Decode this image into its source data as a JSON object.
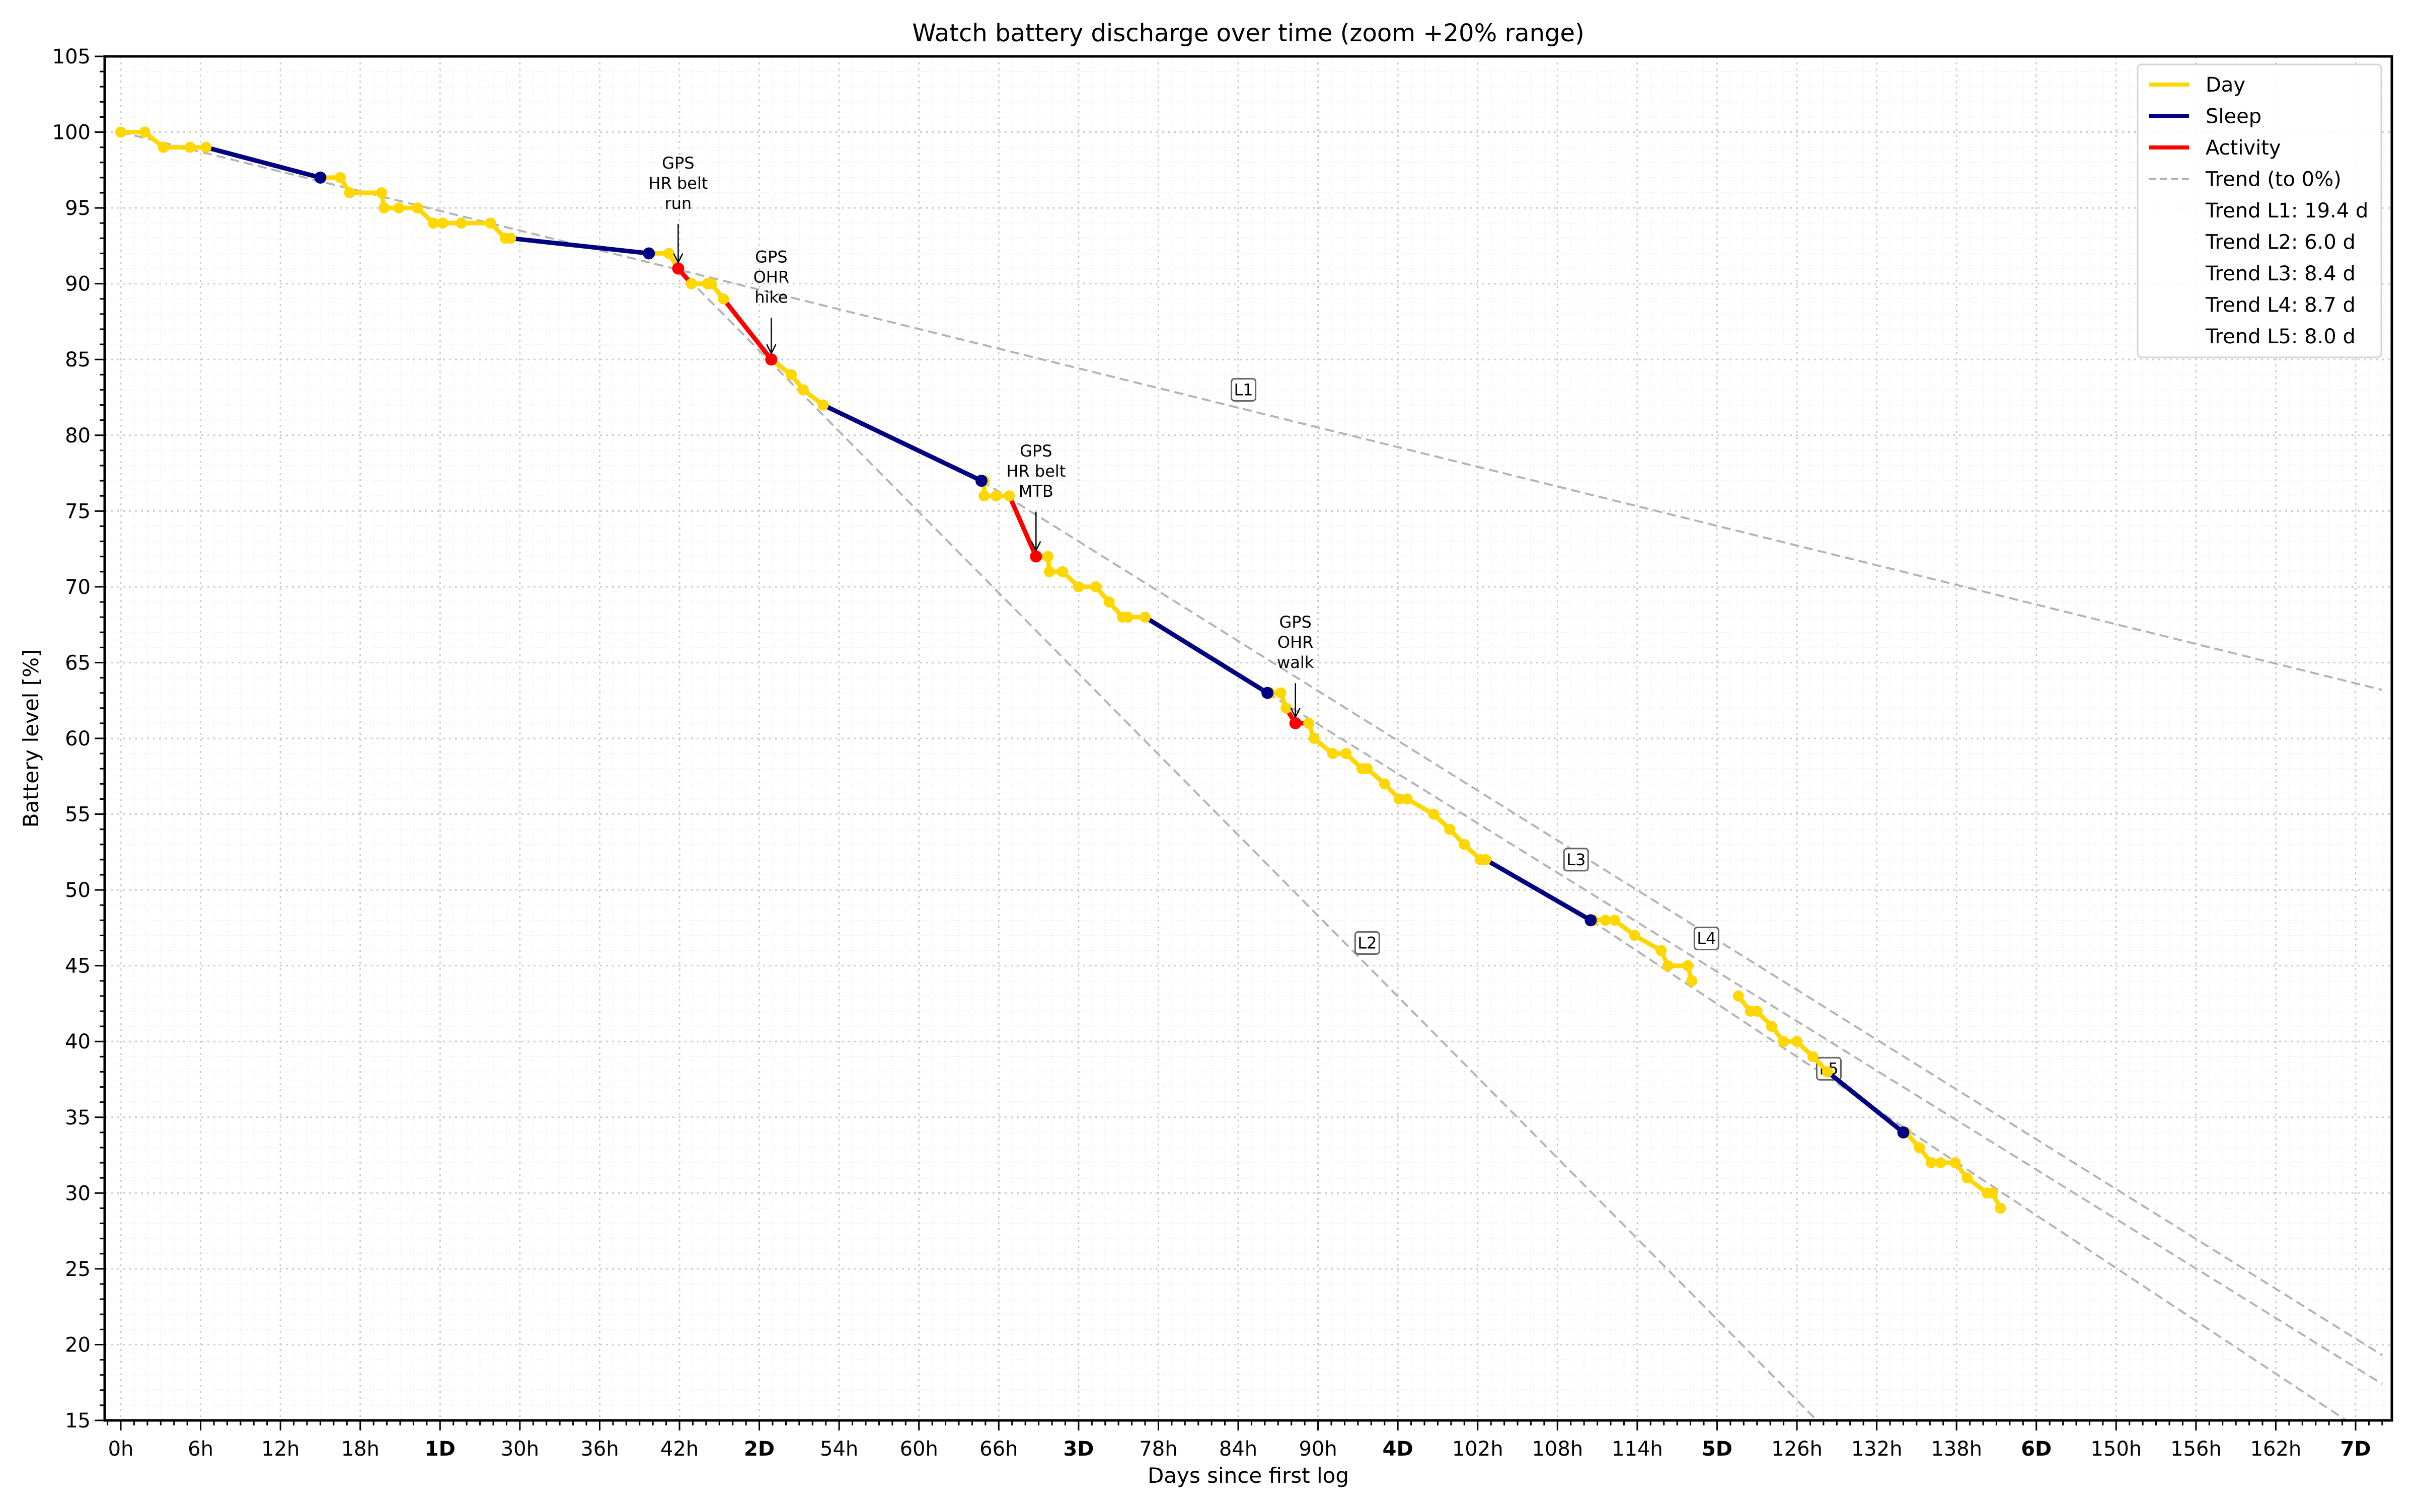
{
  "chart_data": {
    "type": "line",
    "title": "Watch battery discharge over time (zoom +20% range)",
    "xlabel": "Days since first log",
    "ylabel": "Battery level [%]",
    "xlim_hours": [
      -1.2,
      170
    ],
    "ylim": [
      15,
      105
    ],
    "grid": true,
    "legend_position": "upper right",
    "x_ticks": [
      {
        "h": 0,
        "label": "0h",
        "bold": false
      },
      {
        "h": 6,
        "label": "6h",
        "bold": false
      },
      {
        "h": 12,
        "label": "12h",
        "bold": false
      },
      {
        "h": 18,
        "label": "18h",
        "bold": false
      },
      {
        "h": 24,
        "label": "1D",
        "bold": true
      },
      {
        "h": 30,
        "label": "30h",
        "bold": false
      },
      {
        "h": 36,
        "label": "36h",
        "bold": false
      },
      {
        "h": 42,
        "label": "42h",
        "bold": false
      },
      {
        "h": 48,
        "label": "2D",
        "bold": true
      },
      {
        "h": 54,
        "label": "54h",
        "bold": false
      },
      {
        "h": 60,
        "label": "60h",
        "bold": false
      },
      {
        "h": 66,
        "label": "66h",
        "bold": false
      },
      {
        "h": 72,
        "label": "3D",
        "bold": true
      },
      {
        "h": 78,
        "label": "78h",
        "bold": false
      },
      {
        "h": 84,
        "label": "84h",
        "bold": false
      },
      {
        "h": 90,
        "label": "90h",
        "bold": false
      },
      {
        "h": 96,
        "label": "4D",
        "bold": true
      },
      {
        "h": 102,
        "label": "102h",
        "bold": false
      },
      {
        "h": 108,
        "label": "108h",
        "bold": false
      },
      {
        "h": 114,
        "label": "114h",
        "bold": false
      },
      {
        "h": 120,
        "label": "5D",
        "bold": true
      },
      {
        "h": 126,
        "label": "126h",
        "bold": false
      },
      {
        "h": 132,
        "label": "132h",
        "bold": false
      },
      {
        "h": 138,
        "label": "138h",
        "bold": false
      },
      {
        "h": 144,
        "label": "6D",
        "bold": true
      },
      {
        "h": 150,
        "label": "150h",
        "bold": false
      },
      {
        "h": 156,
        "label": "156h",
        "bold": false
      },
      {
        "h": 162,
        "label": "162h",
        "bold": false
      },
      {
        "h": 168,
        "label": "7D",
        "bold": true
      }
    ],
    "y_ticks": [
      15,
      20,
      25,
      30,
      35,
      40,
      45,
      50,
      55,
      60,
      65,
      70,
      75,
      80,
      85,
      90,
      95,
      100,
      105
    ],
    "series": [
      {
        "name": "Day",
        "color": "#FFD700",
        "segments": [
          [
            [
              0,
              100
            ],
            [
              1.8,
              100
            ],
            [
              3.2,
              99
            ],
            [
              5.2,
              99
            ],
            [
              6.4,
              99
            ]
          ],
          [
            [
              15.0,
              97
            ],
            [
              16.5,
              97
            ],
            [
              17.2,
              96
            ],
            [
              19.6,
              96
            ],
            [
              19.8,
              95
            ],
            [
              20.9,
              95
            ],
            [
              22.3,
              95
            ],
            [
              23.5,
              94
            ],
            [
              24.2,
              94
            ],
            [
              25.6,
              94
            ],
            [
              27.8,
              94
            ],
            [
              28.9,
              93
            ],
            [
              29.3,
              93
            ]
          ],
          [
            [
              39.7,
              92
            ],
            [
              41.2,
              92
            ],
            [
              41.9,
              91
            ]
          ],
          [
            [
              42.9,
              90
            ],
            [
              44.1,
              90
            ],
            [
              44.4,
              90
            ],
            [
              45.3,
              89
            ]
          ],
          [
            [
              48.9,
              85
            ],
            [
              50.4,
              84
            ],
            [
              51.3,
              83
            ],
            [
              52.8,
              82
            ]
          ],
          [
            [
              64.9,
              77
            ],
            [
              64.9,
              76
            ],
            [
              65.8,
              76
            ],
            [
              66.8,
              76
            ]
          ],
          [
            [
              68.8,
              72
            ],
            [
              69.7,
              72
            ],
            [
              69.8,
              71
            ],
            [
              70.8,
              71
            ],
            [
              72.0,
              70
            ],
            [
              73.3,
              70
            ],
            [
              74.3,
              69
            ],
            [
              75.3,
              68
            ],
            [
              75.7,
              68
            ],
            [
              77.0,
              68
            ]
          ],
          [
            [
              86.4,
              63
            ],
            [
              87.2,
              63
            ],
            [
              87.6,
              62
            ]
          ],
          [
            [
              89.3,
              61
            ],
            [
              89.7,
              60
            ],
            [
              91.1,
              59
            ],
            [
              92.1,
              59
            ],
            [
              93.3,
              58
            ],
            [
              93.7,
              58
            ],
            [
              95.0,
              57
            ],
            [
              96.1,
              56
            ],
            [
              96.7,
              56
            ],
            [
              98.7,
              55
            ],
            [
              99.9,
              54
            ],
            [
              101.0,
              53
            ],
            [
              102.2,
              52
            ],
            [
              102.6,
              52
            ]
          ],
          [
            [
              110.7,
              48
            ],
            [
              111.6,
              48
            ],
            [
              112.3,
              48
            ],
            [
              113.8,
              47
            ],
            [
              115.8,
              46
            ],
            [
              116.3,
              45
            ],
            [
              117.8,
              45
            ],
            [
              118.1,
              44
            ]
          ],
          [
            [
              121.6,
              43
            ],
            [
              122.5,
              42
            ],
            [
              123.0,
              42
            ],
            [
              124.1,
              41
            ],
            [
              125.0,
              40
            ],
            [
              126.0,
              40
            ],
            [
              127.2,
              39
            ],
            [
              128.3,
              38
            ]
          ],
          [
            [
              134.2,
              34
            ],
            [
              135.2,
              33
            ],
            [
              136.1,
              32
            ],
            [
              136.8,
              32
            ],
            [
              137.9,
              32
            ],
            [
              138.8,
              31
            ],
            [
              140.3,
              30
            ],
            [
              140.7,
              30
            ],
            [
              141.3,
              29
            ]
          ]
        ]
      },
      {
        "name": "Sleep",
        "color": "#000080",
        "segments": [
          [
            [
              6.4,
              99
            ],
            [
              15.0,
              97
            ]
          ],
          [
            [
              29.3,
              93
            ],
            [
              39.7,
              92
            ]
          ],
          [
            [
              52.8,
              82
            ],
            [
              64.7,
              77
            ]
          ],
          [
            [
              77.0,
              68
            ],
            [
              86.2,
              63
            ]
          ],
          [
            [
              102.6,
              52
            ],
            [
              110.5,
              48
            ]
          ],
          [
            [
              128.3,
              38
            ],
            [
              134.0,
              34
            ]
          ]
        ]
      },
      {
        "name": "Activity",
        "color": "#FF0000",
        "segments": [
          [
            [
              41.2,
              92
            ],
            [
              41.9,
              91
            ],
            [
              42.9,
              90
            ]
          ],
          [
            [
              45.3,
              89
            ],
            [
              48.9,
              85
            ],
            [
              50.4,
              84
            ]
          ],
          [
            [
              66.8,
              76
            ],
            [
              68.8,
              72
            ],
            [
              69.7,
              72
            ]
          ],
          [
            [
              87.6,
              62
            ],
            [
              88.3,
              61
            ],
            [
              89.3,
              61
            ]
          ]
        ]
      }
    ],
    "activity_points": [
      [
        41.9,
        91
      ],
      [
        48.9,
        85
      ],
      [
        68.8,
        72
      ],
      [
        88.3,
        61
      ]
    ],
    "sleep_points": [
      [
        15.0,
        97
      ],
      [
        39.7,
        92
      ],
      [
        64.7,
        77
      ],
      [
        86.2,
        63
      ],
      [
        110.5,
        48
      ],
      [
        134.0,
        34
      ]
    ],
    "annotations": [
      {
        "lines": [
          "GPS",
          "HR belt",
          "run"
        ],
        "x": 41.9,
        "y": 91,
        "text_y": 97.6
      },
      {
        "lines": [
          "GPS",
          "OHR",
          "hike"
        ],
        "x": 48.9,
        "y": 85,
        "text_y": 91.4
      },
      {
        "lines": [
          "GPS",
          "HR belt",
          "MTB"
        ],
        "x": 68.8,
        "y": 72,
        "text_y": 78.6
      },
      {
        "lines": [
          "GPS",
          "OHR",
          "walk"
        ],
        "x": 88.3,
        "y": 61,
        "text_y": 67.3
      }
    ],
    "trends": [
      {
        "id": "L1",
        "days_to_zero": 19.4,
        "from": [
          0,
          100
        ],
        "to": [
          170,
          63.2
        ],
        "label_at": [
          84.4,
          83
        ]
      },
      {
        "id": "L2",
        "days_to_zero": 6.0,
        "from": [
          41.9,
          91
        ],
        "to": [
          127.5,
          15
        ],
        "label_at": [
          93.7,
          46.5
        ]
      },
      {
        "id": "L3",
        "days_to_zero": 8.4,
        "from": [
          64.7,
          77
        ],
        "to": [
          170,
          19.3
        ],
        "label_at": [
          109.4,
          52
        ]
      },
      {
        "id": "L4",
        "days_to_zero": 8.7,
        "from": [
          86.2,
          63
        ],
        "to": [
          170,
          17.4
        ],
        "label_at": [
          119.2,
          46.8
        ]
      },
      {
        "id": "L5",
        "days_to_zero": 8.0,
        "from": [
          110.5,
          48
        ],
        "to": [
          167.3,
          15
        ],
        "label_at": [
          128.4,
          38.2
        ]
      }
    ],
    "legend": [
      {
        "label": "Day",
        "color": "#FFD700",
        "style": "solid"
      },
      {
        "label": "Sleep",
        "color": "#000080",
        "style": "solid"
      },
      {
        "label": "Activity",
        "color": "#FF0000",
        "style": "solid"
      },
      {
        "label": "Trend (to 0%)",
        "color": "#b0b0b0",
        "style": "dashed"
      },
      {
        "label": "Trend L1: 19.4 d",
        "style": "none"
      },
      {
        "label": "Trend L2: 6.0 d",
        "style": "none"
      },
      {
        "label": "Trend L3: 8.4 d",
        "style": "none"
      },
      {
        "label": "Trend L4: 8.7 d",
        "style": "none"
      },
      {
        "label": "Trend L5: 8.0 d",
        "style": "none"
      }
    ]
  }
}
